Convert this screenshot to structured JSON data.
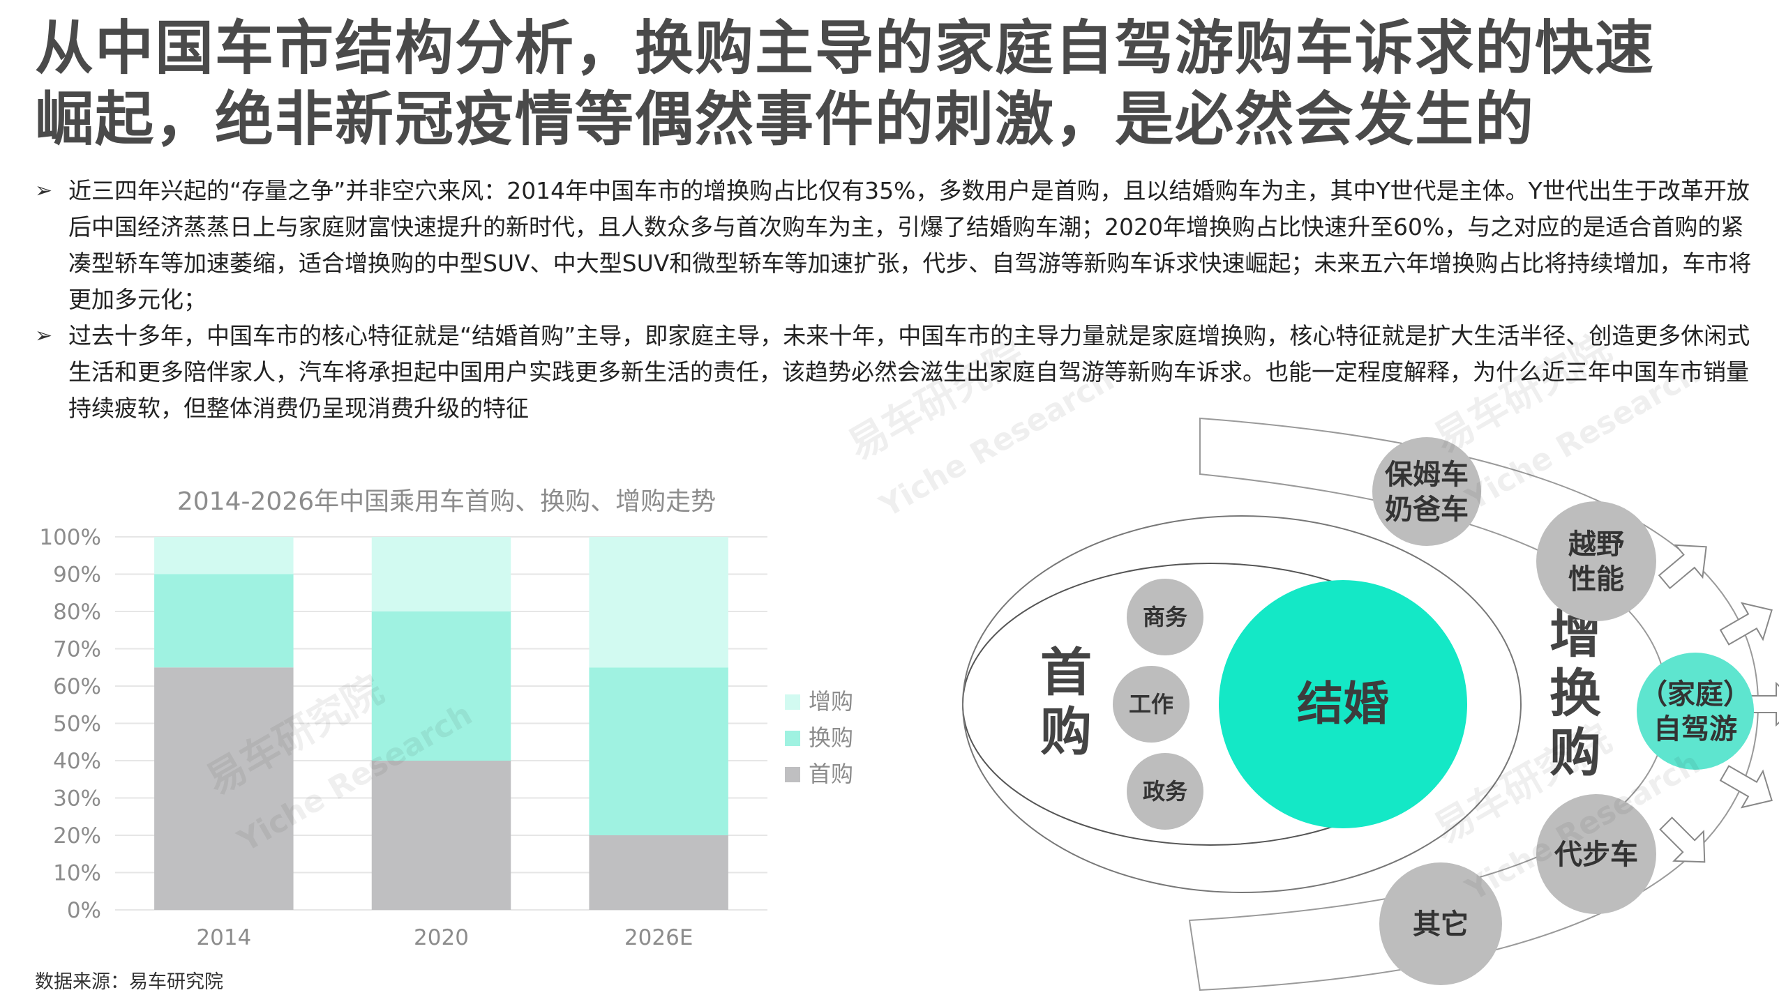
{
  "title": {
    "line1": "从中国车市结构分析，换购主导的家庭自驾游购车诉求的快速",
    "line2": "崛起，绝非新冠疫情等偶然事件的刺激，是必然会发生的"
  },
  "bullets": [
    {
      "marker": "➢",
      "text": "近三四年兴起的“存量之争”并非空穴来风：2014年中国车市的增换购占比仅有35%，多数用户是首购，且以结婚购车为主，其中Y世代是主体。Y世代出生于改革开放后中国经济蒸蒸日上与家庭财富快速提升的新时代，且人数众多与首次购车为主，引爆了结婚购车潮；2020年增换购占比快速升至60%，与之对应的是适合首购的紧凑型轿车等加速萎缩，适合增换购的中型SUV、中大型SUV和微型轿车等加速扩张，代步、自驾游等新购车诉求快速崛起；未来五六年增换购占比将持续增加，车市将更加多元化；"
    },
    {
      "marker": "➢",
      "text": "过去十多年，中国车市的核心特征就是“结婚首购”主导，即家庭主导，未来十年，中国车市的主导力量就是家庭增换购，核心特征就是扩大生活半径、创造更多休闲式生活和更多陪伴家人，汽车将承担起中国用户实践更多新生活的责任，该趋势必然会滋生出家庭自驾游等新购车诉求。也能一定程度解释，为什么近三年中国车市销量持续疲软，但整体消费仍呈现消费升级的特征"
    }
  ],
  "chart_data": {
    "type": "bar",
    "stacked": true,
    "title": "2014-2026年中国乘用车首购、换购、增购走势",
    "categories": [
      "2014",
      "2020",
      "2026E"
    ],
    "series": [
      {
        "name": "首购",
        "values": [
          65,
          40,
          20
        ],
        "color": "#bfbfc1"
      },
      {
        "name": "换购",
        "values": [
          25,
          40,
          45
        ],
        "color": "#9ff2e1"
      },
      {
        "name": "增购",
        "values": [
          10,
          20,
          35
        ],
        "color": "#d2faf1"
      }
    ],
    "yticks": [
      "0%",
      "10%",
      "20%",
      "30%",
      "40%",
      "50%",
      "60%",
      "70%",
      "80%",
      "90%",
      "100%"
    ],
    "ylim": [
      0,
      100
    ],
    "legend_position": "right",
    "legend_order": [
      "增购",
      "换购",
      "首购"
    ]
  },
  "diagram": {
    "left_label_chars": [
      "首",
      "购"
    ],
    "right_label_chars": [
      "增",
      "换",
      "购"
    ],
    "center": "结婚",
    "inner_small": [
      "商务",
      "工作",
      "政务"
    ],
    "outer": [
      {
        "lines": [
          "保姆车",
          "奶爸车"
        ]
      },
      {
        "lines": [
          "越野",
          "性能"
        ]
      },
      {
        "lines": [
          "（家庭）",
          "自驾游"
        ]
      },
      {
        "lines": [
          "代步车"
        ]
      },
      {
        "lines": [
          "其它"
        ]
      }
    ]
  },
  "watermark": {
    "cn": "易车研究院",
    "en": "Yiche Research"
  },
  "source": "数据来源：易车研究院"
}
